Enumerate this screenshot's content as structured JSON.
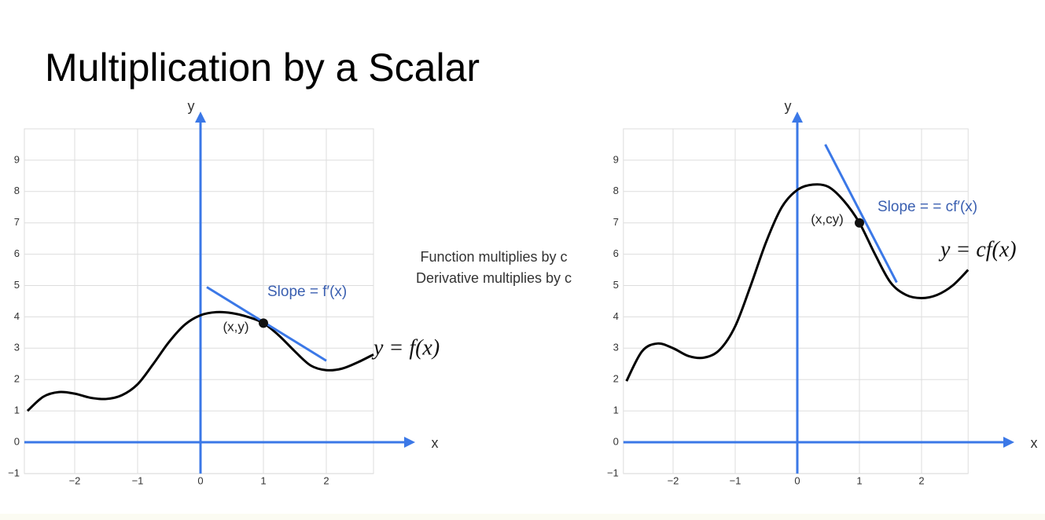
{
  "title": "Multiplication by a Scalar",
  "note": [
    "Function multiplies by c",
    "Derivative multiplies by c"
  ],
  "chart_data": [
    {
      "type": "line",
      "xlabel": "x",
      "ylabel": "y",
      "xlim": [
        -2.8,
        2.75
      ],
      "ylim": [
        -1,
        10
      ],
      "xticks": [
        {
          "value": -2,
          "label": "−2"
        },
        {
          "value": -1,
          "label": "−1"
        },
        0,
        1,
        2
      ],
      "yticks": [
        {
          "value": -1,
          "label": "−1"
        },
        0,
        1,
        2,
        3,
        4,
        5,
        6,
        7,
        8,
        9
      ],
      "grid": true,
      "axis_color": "#3b78e7",
      "x": [
        -2.75,
        -2.5,
        -2.25,
        -2,
        -1.75,
        -1.5,
        -1.25,
        -1,
        -0.75,
        -0.5,
        -0.25,
        0,
        0.25,
        0.5,
        0.75,
        1,
        1.25,
        1.5,
        1.75,
        2,
        2.25,
        2.5,
        2.75
      ],
      "values": [
        1.0,
        1.45,
        1.6,
        1.55,
        1.42,
        1.38,
        1.5,
        1.85,
        2.5,
        3.2,
        3.75,
        4.05,
        4.15,
        4.12,
        4.0,
        3.8,
        3.4,
        2.9,
        2.45,
        2.3,
        2.35,
        2.55,
        2.8
      ],
      "color": "#000000",
      "curve_label": "y = f(x)",
      "tangent": {
        "x": [
          0.1,
          2
        ],
        "values": [
          4.95,
          2.6
        ],
        "color": "#3b78e7",
        "label": "Slope = f′(x)"
      },
      "point": {
        "x": 1,
        "value": 3.8,
        "label": "(x,y)"
      }
    },
    {
      "type": "line",
      "xlabel": "x",
      "ylabel": "y",
      "xlim": [
        -2.8,
        2.75
      ],
      "ylim": [
        -1,
        10
      ],
      "xticks": [
        {
          "value": -2,
          "label": "−2"
        },
        {
          "value": -1,
          "label": "−1"
        },
        0,
        1,
        2
      ],
      "yticks": [
        {
          "value": -1,
          "label": "−1"
        },
        0,
        1,
        2,
        3,
        4,
        5,
        6,
        7,
        8,
        9
      ],
      "grid": true,
      "axis_color": "#3b78e7",
      "x": [
        -2.75,
        -2.5,
        -2.25,
        -2,
        -1.75,
        -1.5,
        -1.25,
        -1,
        -0.75,
        -0.5,
        -0.25,
        0,
        0.25,
        0.5,
        0.75,
        1,
        1.25,
        1.5,
        1.75,
        2,
        2.25,
        2.5,
        2.75
      ],
      "values": [
        1.95,
        2.9,
        3.15,
        3.0,
        2.75,
        2.7,
        2.95,
        3.7,
        5.0,
        6.4,
        7.5,
        8.05,
        8.22,
        8.15,
        7.7,
        7.0,
        6.0,
        5.1,
        4.7,
        4.6,
        4.7,
        5.0,
        5.5
      ],
      "color": "#000000",
      "curve_label": "y = cf(x)",
      "tangent": {
        "x": [
          0.45,
          1.6
        ],
        "values": [
          9.5,
          5.1
        ],
        "color": "#3b78e7",
        "label": "Slope = = cf′(x)"
      },
      "point": {
        "x": 1,
        "value": 7.0,
        "label": "(x,cy)"
      }
    }
  ]
}
